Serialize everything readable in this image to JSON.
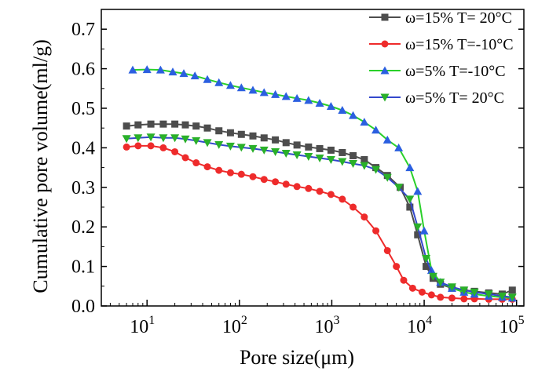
{
  "chart_data": {
    "type": "line",
    "title": "",
    "xlabel": "Pore size(μm)",
    "ylabel": "Cumulative pore volume(ml/g)",
    "xscale": "log",
    "xlim": [
      3.2,
      120000
    ],
    "ylim": [
      0,
      0.75
    ],
    "x_ticks": [
      {
        "value": 10,
        "base": "10",
        "exp": "1"
      },
      {
        "value": 100,
        "base": "10",
        "exp": "2"
      },
      {
        "value": 1000,
        "base": "10",
        "exp": "3"
      },
      {
        "value": 10000,
        "base": "10",
        "exp": "4"
      },
      {
        "value": 100000,
        "base": "10",
        "exp": "5"
      }
    ],
    "y_ticks": [
      {
        "value": 0.0,
        "label": "0.0"
      },
      {
        "value": 0.1,
        "label": "0.1"
      },
      {
        "value": 0.2,
        "label": "0.2"
      },
      {
        "value": 0.3,
        "label": "0.3"
      },
      {
        "value": 0.4,
        "label": "0.4"
      },
      {
        "value": 0.5,
        "label": "0.5"
      },
      {
        "value": 0.6,
        "label": "0.6"
      },
      {
        "value": 0.7,
        "label": "0.7"
      }
    ],
    "legend_position": "top-right",
    "series": [
      {
        "name": "ω=15% T= 20°C",
        "color": "#4d4d4d",
        "marker": "square",
        "points": [
          [
            6,
            0.455
          ],
          [
            8,
            0.458
          ],
          [
            11,
            0.46
          ],
          [
            15,
            0.46
          ],
          [
            20,
            0.46
          ],
          [
            26,
            0.458
          ],
          [
            34,
            0.455
          ],
          [
            45,
            0.45
          ],
          [
            60,
            0.443
          ],
          [
            80,
            0.438
          ],
          [
            105,
            0.434
          ],
          [
            140,
            0.43
          ],
          [
            185,
            0.425
          ],
          [
            245,
            0.42
          ],
          [
            320,
            0.413
          ],
          [
            420,
            0.407
          ],
          [
            560,
            0.402
          ],
          [
            740,
            0.398
          ],
          [
            980,
            0.394
          ],
          [
            1300,
            0.388
          ],
          [
            1700,
            0.38
          ],
          [
            2250,
            0.37
          ],
          [
            3000,
            0.35
          ],
          [
            4000,
            0.33
          ],
          [
            5500,
            0.3
          ],
          [
            7000,
            0.25
          ],
          [
            8500,
            0.18
          ],
          [
            10500,
            0.1
          ],
          [
            12500,
            0.07
          ],
          [
            15000,
            0.055
          ],
          [
            20000,
            0.045
          ],
          [
            27000,
            0.04
          ],
          [
            35000,
            0.037
          ],
          [
            50000,
            0.033
          ],
          [
            70000,
            0.03
          ],
          [
            90000,
            0.04
          ]
        ]
      },
      {
        "name": "ω=15% T=-10°C",
        "color": "#ee2b2b",
        "marker": "circle",
        "points": [
          [
            6,
            0.402
          ],
          [
            8,
            0.405
          ],
          [
            11,
            0.405
          ],
          [
            15,
            0.4
          ],
          [
            20,
            0.39
          ],
          [
            26,
            0.375
          ],
          [
            34,
            0.362
          ],
          [
            45,
            0.352
          ],
          [
            60,
            0.343
          ],
          [
            80,
            0.337
          ],
          [
            105,
            0.333
          ],
          [
            140,
            0.327
          ],
          [
            185,
            0.32
          ],
          [
            245,
            0.314
          ],
          [
            320,
            0.308
          ],
          [
            420,
            0.302
          ],
          [
            560,
            0.297
          ],
          [
            740,
            0.29
          ],
          [
            980,
            0.282
          ],
          [
            1300,
            0.27
          ],
          [
            1700,
            0.25
          ],
          [
            2250,
            0.225
          ],
          [
            3000,
            0.19
          ],
          [
            4000,
            0.14
          ],
          [
            5000,
            0.1
          ],
          [
            6000,
            0.065
          ],
          [
            7500,
            0.045
          ],
          [
            9500,
            0.035
          ],
          [
            12000,
            0.028
          ],
          [
            15000,
            0.022
          ],
          [
            20000,
            0.02
          ],
          [
            27000,
            0.018
          ],
          [
            35000,
            0.018
          ],
          [
            50000,
            0.017
          ],
          [
            70000,
            0.017
          ],
          [
            90000,
            0.017
          ]
        ]
      },
      {
        "name": "ω=5%   T=-10°C",
        "color": "#2ad02a",
        "marker": "triangle-up",
        "markerColor": "#2b5fe0",
        "points": [
          [
            7,
            0.597
          ],
          [
            10,
            0.598
          ],
          [
            14,
            0.597
          ],
          [
            19,
            0.592
          ],
          [
            25,
            0.588
          ],
          [
            33,
            0.582
          ],
          [
            45,
            0.573
          ],
          [
            60,
            0.565
          ],
          [
            80,
            0.558
          ],
          [
            105,
            0.552
          ],
          [
            140,
            0.546
          ],
          [
            185,
            0.54
          ],
          [
            245,
            0.535
          ],
          [
            320,
            0.53
          ],
          [
            420,
            0.525
          ],
          [
            560,
            0.52
          ],
          [
            740,
            0.513
          ],
          [
            980,
            0.505
          ],
          [
            1300,
            0.495
          ],
          [
            1700,
            0.482
          ],
          [
            2250,
            0.465
          ],
          [
            3000,
            0.445
          ],
          [
            4000,
            0.42
          ],
          [
            5300,
            0.4
          ],
          [
            7000,
            0.35
          ],
          [
            8500,
            0.29
          ],
          [
            10000,
            0.19
          ],
          [
            12000,
            0.09
          ],
          [
            15000,
            0.06
          ],
          [
            20000,
            0.045
          ],
          [
            27000,
            0.035
          ],
          [
            35000,
            0.03
          ],
          [
            50000,
            0.025
          ],
          [
            70000,
            0.022
          ],
          [
            90000,
            0.02
          ]
        ]
      },
      {
        "name": "ω=5%   T= 20°C",
        "color": "#3348cc",
        "marker": "triangle-down",
        "markerColor": "#2ab02a",
        "points": [
          [
            6,
            0.423
          ],
          [
            8,
            0.425
          ],
          [
            11,
            0.427
          ],
          [
            15,
            0.425
          ],
          [
            20,
            0.425
          ],
          [
            26,
            0.422
          ],
          [
            34,
            0.418
          ],
          [
            45,
            0.413
          ],
          [
            60,
            0.408
          ],
          [
            80,
            0.404
          ],
          [
            105,
            0.401
          ],
          [
            140,
            0.398
          ],
          [
            185,
            0.394
          ],
          [
            245,
            0.39
          ],
          [
            320,
            0.386
          ],
          [
            420,
            0.382
          ],
          [
            560,
            0.378
          ],
          [
            740,
            0.374
          ],
          [
            980,
            0.37
          ],
          [
            1300,
            0.365
          ],
          [
            1700,
            0.36
          ],
          [
            2250,
            0.355
          ],
          [
            3000,
            0.345
          ],
          [
            4000,
            0.325
          ],
          [
            5300,
            0.3
          ],
          [
            7000,
            0.27
          ],
          [
            8500,
            0.2
          ],
          [
            10500,
            0.12
          ],
          [
            12500,
            0.075
          ],
          [
            15000,
            0.06
          ],
          [
            20000,
            0.048
          ],
          [
            27000,
            0.04
          ],
          [
            35000,
            0.035
          ],
          [
            50000,
            0.03
          ],
          [
            70000,
            0.025
          ],
          [
            90000,
            0.022
          ]
        ]
      }
    ]
  }
}
